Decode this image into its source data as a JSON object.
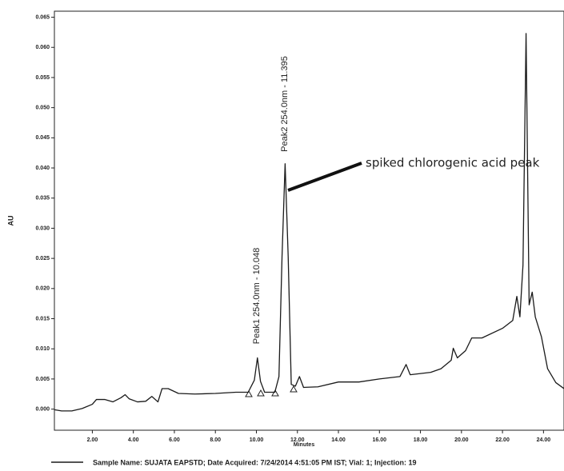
{
  "chart_data": {
    "type": "line",
    "x_label": "Minutes",
    "y_label": "AU",
    "xlim": [
      0.15,
      25.0
    ],
    "ylim": [
      -0.0035,
      0.066
    ],
    "xticks": [
      {
        "value": 2,
        "label": "2.00"
      },
      {
        "value": 4,
        "label": "4.00"
      },
      {
        "value": 6,
        "label": "6.00"
      },
      {
        "value": 8,
        "label": "8.00"
      },
      {
        "value": 10,
        "label": "10.00"
      },
      {
        "value": 12,
        "label": "12.00"
      },
      {
        "value": 14,
        "label": "14.00"
      },
      {
        "value": 16,
        "label": "16.00"
      },
      {
        "value": 18,
        "label": "18.00"
      },
      {
        "value": 20,
        "label": "20.00"
      },
      {
        "value": 22,
        "label": "22.00"
      },
      {
        "value": 24,
        "label": "24.00"
      }
    ],
    "yticks": [
      {
        "value": 0,
        "label": "0.000"
      },
      {
        "value": 0.005,
        "label": "0.005"
      },
      {
        "value": 0.01,
        "label": "0.010"
      },
      {
        "value": 0.015,
        "label": "0.015"
      },
      {
        "value": 0.02,
        "label": "0.020"
      },
      {
        "value": 0.025,
        "label": "0.025"
      },
      {
        "value": 0.03,
        "label": "0.030"
      },
      {
        "value": 0.035,
        "label": "0.035"
      },
      {
        "value": 0.04,
        "label": "0.040"
      },
      {
        "value": 0.045,
        "label": "0.045"
      },
      {
        "value": 0.05,
        "label": "0.050"
      },
      {
        "value": 0.055,
        "label": "0.055"
      },
      {
        "value": 0.06,
        "label": "0.060"
      },
      {
        "value": 0.065,
        "label": "0.065"
      }
    ],
    "grid": false,
    "annotations": [
      "Peak1 254.0nm - 10.048",
      "Peak2 254.0nm - 11.395",
      "spiked chlorogenic acid peak"
    ],
    "series": [
      {
        "name": "Sample Name: SUJATA EAPSTD;  Date Acquired: 7/24/2014 4:51:05 PM IST;  Vial: 1;  Injection: 19",
        "color": "#1a1a1a",
        "x": [
          0.15,
          0.5,
          1.0,
          1.5,
          2.0,
          2.2,
          2.6,
          3.0,
          3.4,
          3.6,
          3.8,
          4.2,
          4.6,
          4.9,
          5.2,
          5.4,
          5.7,
          6.2,
          7.0,
          8.0,
          9.0,
          9.6,
          9.9,
          10.05,
          10.2,
          10.4,
          10.9,
          11.1,
          11.25,
          11.4,
          11.55,
          11.7,
          11.9,
          12.1,
          12.3,
          13.0,
          14.0,
          15.0,
          16.0,
          17.0,
          17.3,
          17.5,
          18.5,
          19.0,
          19.5,
          19.6,
          19.8,
          20.2,
          20.5,
          21.0,
          22.0,
          22.5,
          22.7,
          22.85,
          23.0,
          23.15,
          23.3,
          23.45,
          23.6,
          23.9,
          24.2,
          24.6,
          25.0
        ],
        "values": [
          -0.0001,
          -0.0003,
          -0.0003,
          0.0001,
          0.0008,
          0.0016,
          0.0016,
          0.0012,
          0.0019,
          0.0024,
          0.0017,
          0.0012,
          0.0013,
          0.0021,
          0.0012,
          0.0034,
          0.0034,
          0.0026,
          0.0025,
          0.0026,
          0.0028,
          0.0028,
          0.0048,
          0.0085,
          0.0046,
          0.0028,
          0.0028,
          0.0054,
          0.0253,
          0.0407,
          0.0253,
          0.0041,
          0.0038,
          0.0054,
          0.0036,
          0.0037,
          0.0045,
          0.0045,
          0.005,
          0.0054,
          0.0074,
          0.0057,
          0.0061,
          0.0067,
          0.0081,
          0.0101,
          0.0085,
          0.0097,
          0.0118,
          0.0118,
          0.0134,
          0.0147,
          0.0187,
          0.0153,
          0.0239,
          0.0623,
          0.0173,
          0.0194,
          0.0153,
          0.012,
          0.0067,
          0.0044,
          0.0034
        ]
      }
    ]
  }
}
